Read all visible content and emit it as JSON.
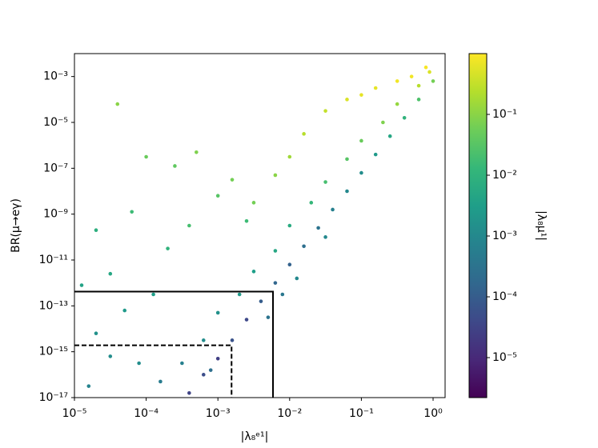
{
  "chart_data": {
    "type": "scatter",
    "x_label": "|λ₈ᵉ¹|",
    "y_label": "BR(μ→eγ)",
    "colorbar_label": "|λ₈μ¹|",
    "log_x": true,
    "log_y": true,
    "log_c": true,
    "colormap": "viridis",
    "xlim": [
      1e-05,
      1.47
    ],
    "ylim": [
      1e-17,
      0.01
    ],
    "clim": [
      2.2e-06,
      1
    ],
    "xticks": [
      {
        "value": 1e-05,
        "label": "10⁻⁵"
      },
      {
        "value": 0.0001,
        "label": "10⁻⁴"
      },
      {
        "value": 0.001,
        "label": "10⁻³"
      },
      {
        "value": 0.01,
        "label": "10⁻²"
      },
      {
        "value": 0.1,
        "label": "10⁻¹"
      },
      {
        "value": 1,
        "label": "10⁰"
      }
    ],
    "yticks": [
      {
        "value": 1e-17,
        "label": "10⁻¹⁷"
      },
      {
        "value": 1e-15,
        "label": "10⁻¹⁵"
      },
      {
        "value": 1e-13,
        "label": "10⁻¹³"
      },
      {
        "value": 1e-11,
        "label": "10⁻¹¹"
      },
      {
        "value": 1e-09,
        "label": "10⁻⁹"
      },
      {
        "value": 1e-07,
        "label": "10⁻⁷"
      },
      {
        "value": 1e-05,
        "label": "10⁻⁵"
      },
      {
        "value": 0.001,
        "label": "10⁻³"
      }
    ],
    "cticks": [
      {
        "value": 1e-05,
        "label": "10⁻⁵"
      },
      {
        "value": 0.0001,
        "label": "10⁻⁴"
      },
      {
        "value": 0.001,
        "label": "10⁻³"
      },
      {
        "value": 0.01,
        "label": "10⁻²"
      },
      {
        "value": 0.1,
        "label": "10⁻¹"
      }
    ],
    "x": [
      0.000398,
      0.000631,
      0.001,
      0.00158,
      0.00251,
      0.00398,
      0.00631,
      0.01,
      0.0158,
      0.0251,
      0.0398,
      0.0631,
      0.1,
      0.158,
      0.251,
      0.398,
      0.631,
      1,
      0.000316,
      0.000631,
      0.001,
      0.002,
      0.00316,
      0.00631,
      0.01,
      0.02,
      0.0316,
      0.0631,
      0.1,
      0.2,
      0.316,
      0.631,
      0.891,
      0.00316,
      0.00631,
      0.01,
      0.0158,
      0.0316,
      0.0631,
      0.1,
      0.158,
      0.316,
      0.501,
      0.794,
      3.98e-05,
      0.0001,
      0.000251,
      0.000501,
      0.001,
      6.31e-05,
      2e-05,
      3.16e-05,
      1.26e-05,
      5.01e-05,
      2e-05,
      7.94e-05,
      1.58e-05,
      0.000158,
      3.16e-05,
      0.000126,
      0.0002,
      0.000398,
      0.00158,
      0.00251,
      0.00501,
      0.00794,
      0.0126,
      0.0316,
      0.000794
    ],
    "values": [
      1.58e-17,
      1e-16,
      5.01e-16,
      3.16e-15,
      2.51e-14,
      1.58e-13,
      1e-12,
      6.31e-12,
      3.98e-11,
      2.51e-10,
      1.58e-09,
      1e-08,
      6.31e-08,
      3.98e-07,
      2.51e-06,
      1.58e-05,
      0.0001,
      0.000631,
      3.16e-16,
      3.16e-15,
      5.01e-14,
      3.16e-13,
      3.16e-12,
      2.51e-11,
      3.16e-10,
      3.16e-09,
      2.51e-08,
      2.51e-07,
      1.58e-06,
      1e-05,
      6.31e-05,
      0.000398,
      0.00158,
      3.16e-09,
      5.01e-08,
      3.16e-07,
      3.16e-06,
      3.16e-05,
      0.0001,
      0.000158,
      0.000316,
      0.000631,
      0.001,
      0.00251,
      6.31e-05,
      3.16e-07,
      1.26e-07,
      5.01e-07,
      6.31e-09,
      1.26e-09,
      2e-10,
      2.51e-12,
      7.94e-13,
      6.31e-14,
      6.31e-15,
      3.16e-16,
      3.16e-17,
      5.01e-17,
      6.31e-16,
      3.16e-13,
      3.16e-11,
      3.16e-10,
      3.16e-08,
      5.01e-10,
      3.16e-14,
      3.16e-13,
      1.58e-12,
      1e-10,
      1.58e-16
    ],
    "color_values": [
      3.16e-05,
      5.01e-05,
      2.51e-05,
      6.31e-05,
      3.98e-05,
      0.0001,
      0.000158,
      0.000126,
      0.000251,
      0.000316,
      0.000631,
      0.001,
      0.00126,
      0.00251,
      0.00501,
      0.01,
      0.0251,
      0.0631,
      0.000631,
      0.00126,
      0.00158,
      0.00251,
      0.00316,
      0.00501,
      0.00631,
      0.0126,
      0.02,
      0.0316,
      0.0501,
      0.0794,
      0.126,
      0.251,
      0.501,
      0.0631,
      0.1,
      0.158,
      0.251,
      0.316,
      0.501,
      0.631,
      0.631,
      0.794,
      0.794,
      0.891,
      0.1,
      0.0501,
      0.0398,
      0.0794,
      0.0316,
      0.0158,
      0.00794,
      0.00501,
      0.00398,
      0.00251,
      0.00158,
      0.00126,
      0.000794,
      0.000501,
      0.00126,
      0.00316,
      0.01,
      0.02,
      0.0631,
      0.0158,
      0.000316,
      0.000398,
      0.001,
      0.001,
      0.000251
    ],
    "boxes": [
      {
        "x": 0.00586,
        "y": 4.2e-13,
        "style": "solid"
      },
      {
        "x": 0.00155,
        "y": 1.9e-15,
        "style": "dashed"
      }
    ]
  }
}
